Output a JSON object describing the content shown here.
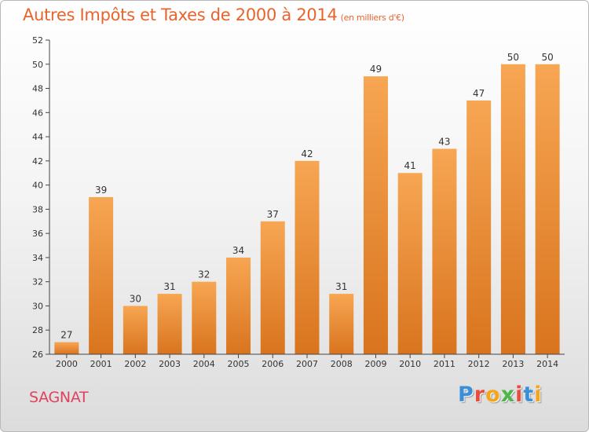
{
  "header": {
    "title": "Autres Impôts et Taxes de 2000 à 2014",
    "unit": "(en milliers d'€)"
  },
  "footer": {
    "commune": "SAGNAT",
    "logo_letters": [
      "P",
      "r",
      "o",
      "x",
      "i",
      "t",
      "i"
    ],
    "logo_colors": [
      "#3b8fd8",
      "#e94b3c",
      "#f3a51c",
      "#4cb648",
      "#e94b3c",
      "#3b8fd8",
      "#f3a51c"
    ]
  },
  "colors": {
    "bar_light": "#f7a653",
    "bar_dark": "#d9741e",
    "axis": "#444444",
    "grid": "#bbbbbb",
    "title": "#e8642c",
    "commune": "#e0425e"
  },
  "chart_data": {
    "type": "bar",
    "title": "Autres Impôts et Taxes de 2000 à 2014",
    "categories": [
      "2000",
      "2001",
      "2002",
      "2003",
      "2004",
      "2005",
      "2006",
      "2007",
      "2008",
      "2009",
      "2010",
      "2011",
      "2012",
      "2013",
      "2014"
    ],
    "values": [
      27,
      39,
      30,
      31,
      32,
      34,
      37,
      42,
      31,
      49,
      41,
      43,
      47,
      50,
      50
    ],
    "ylim": [
      26,
      52
    ],
    "yticks": [
      26,
      28,
      30,
      32,
      34,
      36,
      38,
      40,
      42,
      44,
      46,
      48,
      50,
      52
    ],
    "grid": false,
    "data_labels": true
  }
}
